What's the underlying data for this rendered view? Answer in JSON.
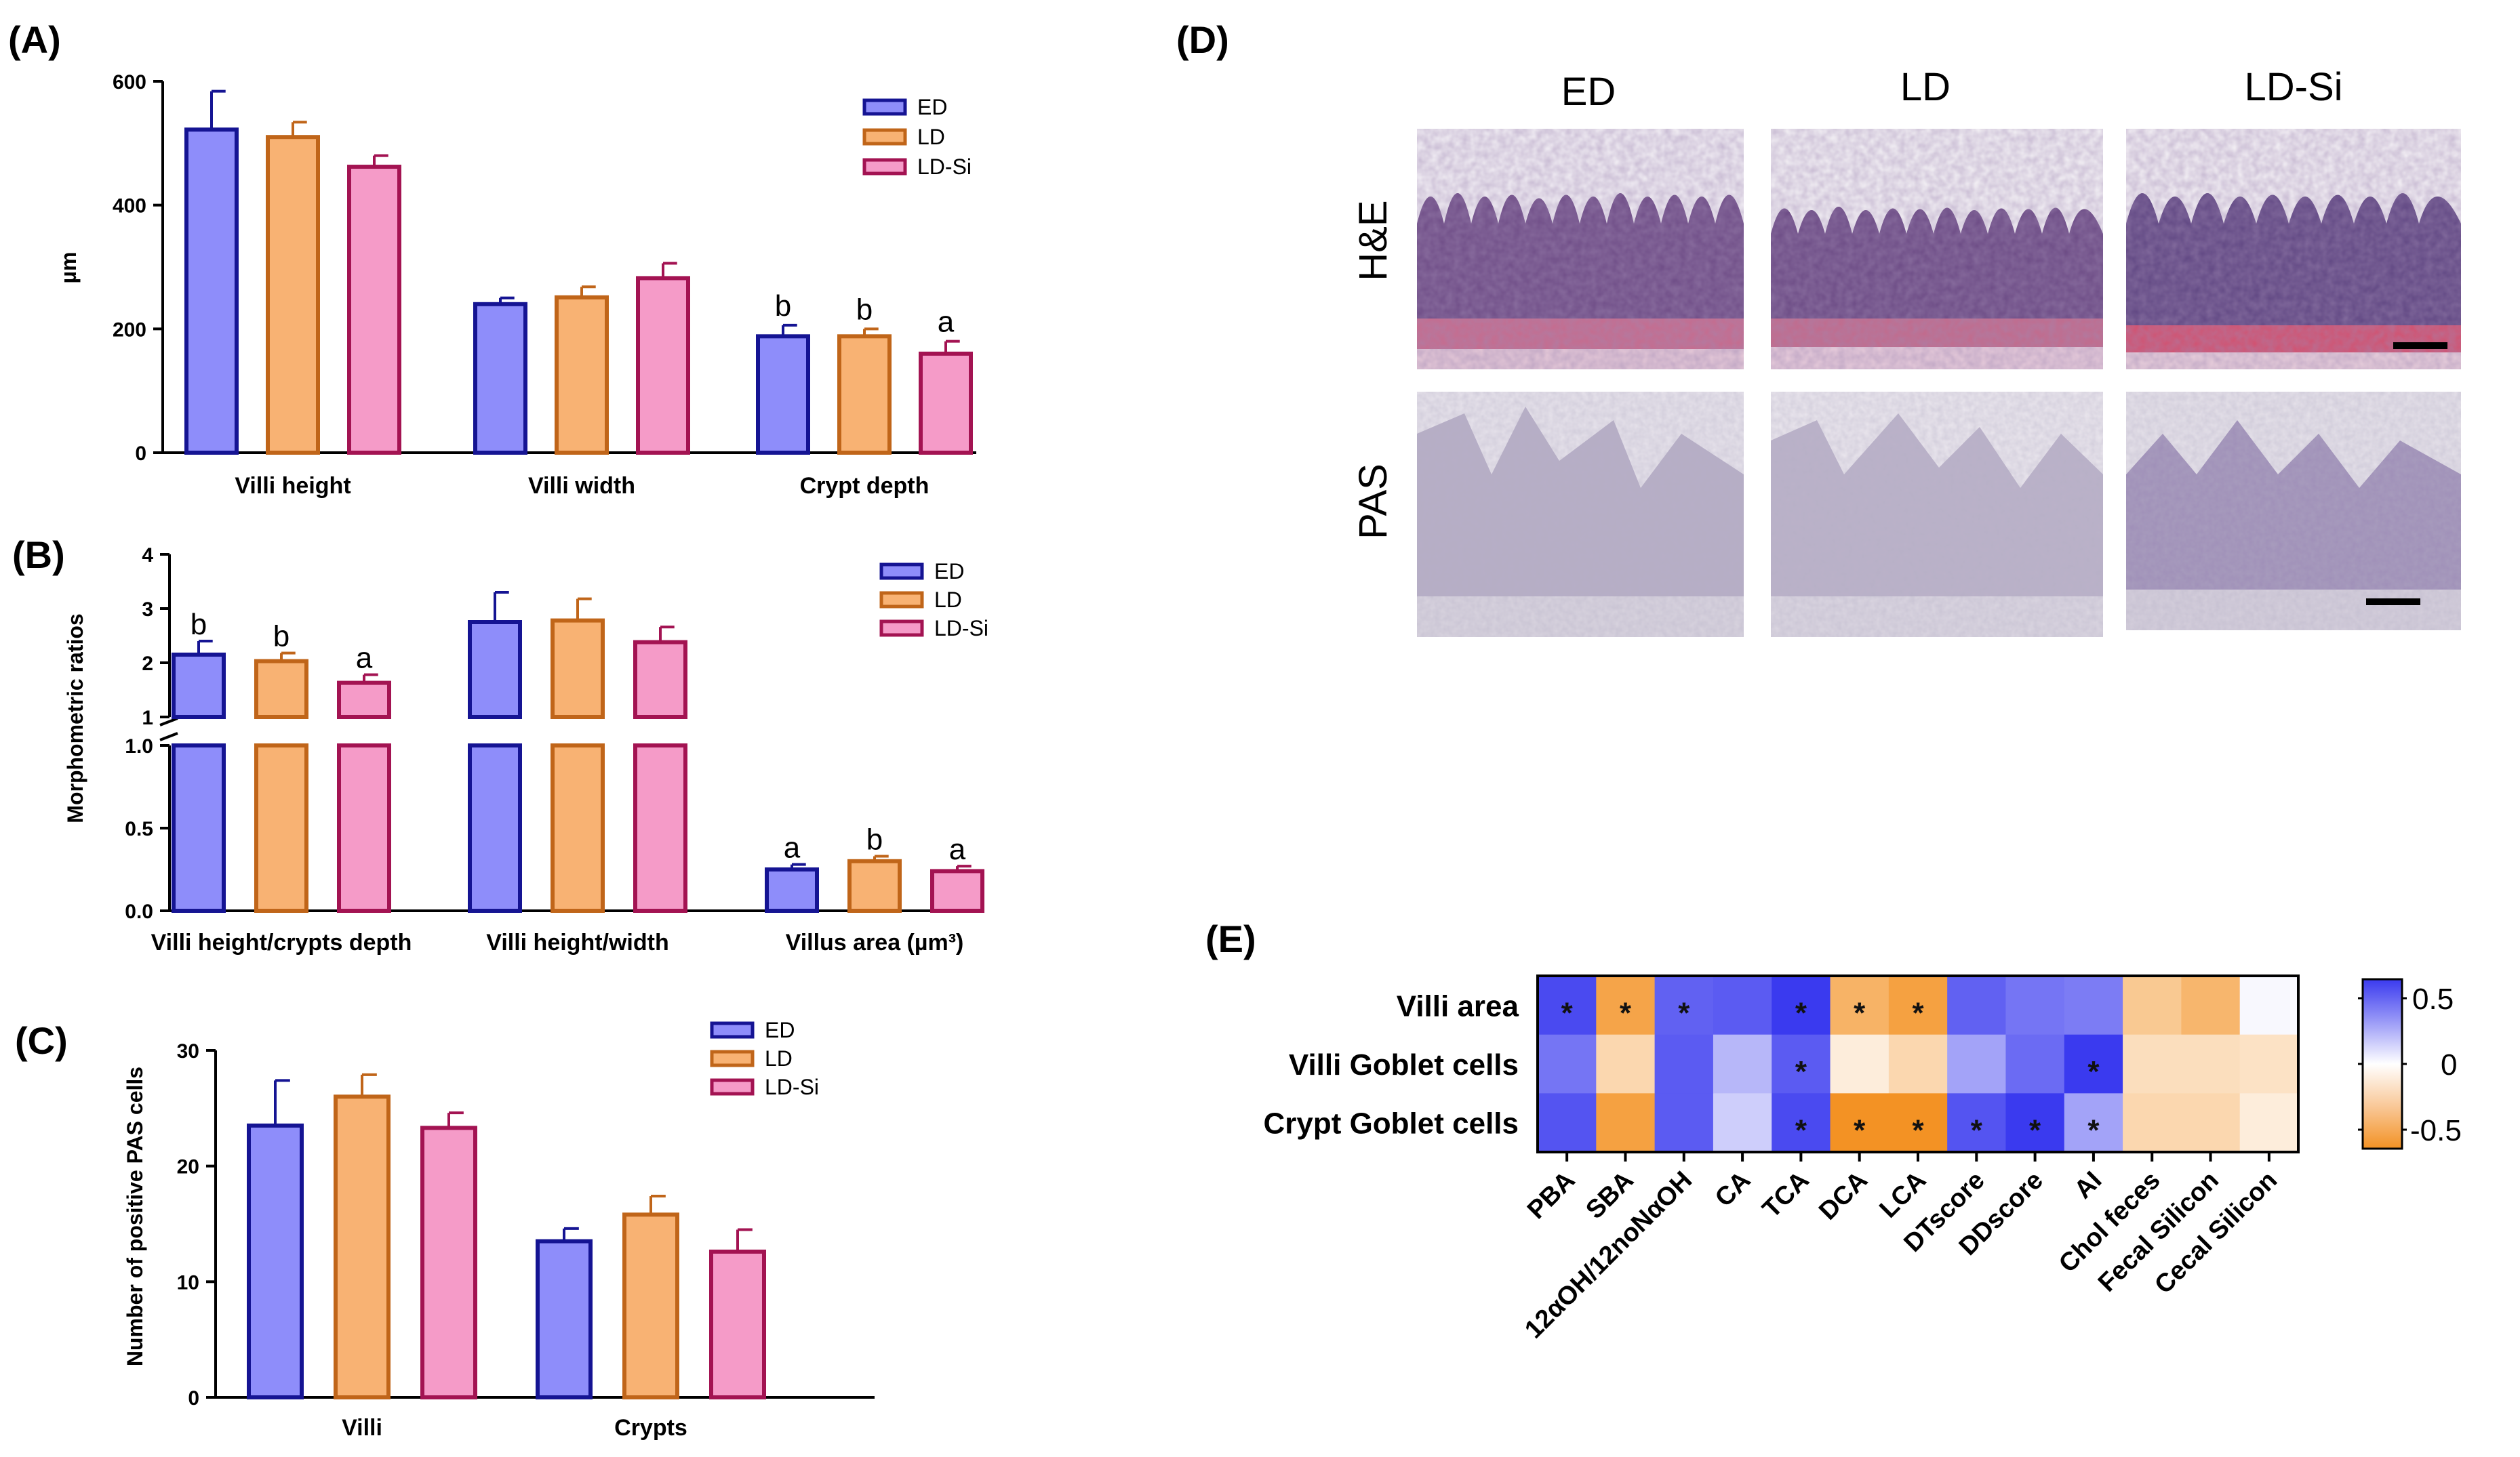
{
  "colors": {
    "ED": {
      "fill": "#8e8dfa",
      "edge": "#151493"
    },
    "LD": {
      "fill": "#f8b273",
      "edge": "#c06519"
    },
    "LD-Si": {
      "fill": "#f59bc8",
      "edge": "#a31352"
    },
    "hm_neg": "#f39c36",
    "hm_mid": "#ffffff",
    "hm_pos": "#4141f0"
  },
  "panel_labels": {
    "A": "(A)",
    "B": "(B)",
    "C": "(C)",
    "D": "(D)",
    "E": "(E)"
  },
  "chart_data": [
    {
      "id": "A",
      "type": "bar",
      "title": "",
      "xlabel": "",
      "ylabel": "µm",
      "ylim": [
        0,
        600
      ],
      "yticks": [
        "0",
        "200",
        "400",
        "600"
      ],
      "categories": [
        "Villi height",
        "Villi width",
        "Crypt depth"
      ],
      "series": [
        {
          "name": "ED",
          "values": [
            522,
            240,
            188
          ],
          "errors": [
            62,
            10,
            18
          ],
          "letters": [
            "",
            "",
            "b"
          ]
        },
        {
          "name": "LD",
          "values": [
            510,
            251,
            188
          ],
          "errors": [
            24,
            17,
            12
          ],
          "letters": [
            "",
            "",
            "b"
          ]
        },
        {
          "name": "LD-Si",
          "values": [
            462,
            282,
            160
          ],
          "errors": [
            18,
            24,
            20
          ],
          "letters": [
            "",
            "",
            "a"
          ]
        }
      ],
      "legend": [
        "ED",
        "LD",
        "LD-Si"
      ],
      "legend_position": "top-right"
    },
    {
      "id": "B",
      "type": "bar",
      "title": "",
      "xlabel": "",
      "ylabel": "Morphometric ratios",
      "axis_break": {
        "lower": [
          0.0,
          1.0
        ],
        "upper": [
          1,
          4
        ]
      },
      "yticks_lower": [
        "0.0",
        "0.5",
        "1.0"
      ],
      "yticks_upper": [
        "1",
        "2",
        "3",
        "4"
      ],
      "categories": [
        "Villi height/crypts depth",
        "Villi height/width",
        "Villus area (µm³)"
      ],
      "series": [
        {
          "name": "ED",
          "values": [
            2.15,
            2.75,
            0.25
          ],
          "errors": [
            0.25,
            0.55,
            0.03
          ],
          "letters": [
            "b",
            "",
            "a"
          ]
        },
        {
          "name": "LD",
          "values": [
            2.03,
            2.78,
            0.3
          ],
          "errors": [
            0.15,
            0.4,
            0.03
          ],
          "letters": [
            "b",
            "",
            "b"
          ]
        },
        {
          "name": "LD-Si",
          "values": [
            1.63,
            2.38,
            0.24
          ],
          "errors": [
            0.15,
            0.28,
            0.03
          ],
          "letters": [
            "a",
            "",
            "a"
          ]
        }
      ],
      "legend": [
        "ED",
        "LD",
        "LD-Si"
      ],
      "legend_position": "top-right"
    },
    {
      "id": "C",
      "type": "bar",
      "title": "",
      "xlabel": "",
      "ylabel": "Number of positive PAS cells",
      "ylim": [
        0,
        30
      ],
      "yticks": [
        "0",
        "10",
        "20",
        "30"
      ],
      "categories": [
        "Villi",
        "Crypts"
      ],
      "series": [
        {
          "name": "ED",
          "values": [
            23.5,
            13.5
          ],
          "errors": [
            3.9,
            1.1
          ]
        },
        {
          "name": "LD",
          "values": [
            26.0,
            15.8
          ],
          "errors": [
            1.9,
            1.6
          ]
        },
        {
          "name": "LD-Si",
          "values": [
            23.3,
            12.6
          ],
          "errors": [
            1.3,
            1.9
          ]
        }
      ],
      "legend": [
        "ED",
        "LD",
        "LD-Si"
      ],
      "legend_position": "top-right"
    },
    {
      "id": "E",
      "type": "heatmap",
      "title": "",
      "rows": [
        "Villi area",
        "Villi Goblet cells",
        "Crypt Goblet cells"
      ],
      "columns": [
        "PBA",
        "SBA",
        "12αOH/12noNαOH",
        "CA",
        "TCA",
        "DCA",
        "LCA",
        "DTscore",
        "DDscore",
        "AI",
        "Chol feces",
        "Fecal Silicon",
        "Cecal Silicon"
      ],
      "values": [
        [
          0.55,
          -0.5,
          0.48,
          0.5,
          0.62,
          -0.42,
          -0.52,
          0.48,
          0.42,
          0.4,
          -0.3,
          -0.4,
          0.02
        ],
        [
          0.42,
          -0.22,
          0.5,
          0.22,
          0.5,
          -0.1,
          -0.22,
          0.28,
          0.45,
          0.7,
          -0.18,
          -0.18,
          -0.16
        ],
        [
          0.52,
          -0.52,
          0.5,
          0.15,
          0.55,
          -0.6,
          -0.62,
          0.52,
          0.82,
          0.28,
          -0.22,
          -0.22,
          -0.1
        ]
      ],
      "significant": [
        [
          true,
          true,
          true,
          false,
          true,
          true,
          true,
          false,
          false,
          false,
          false,
          false,
          false
        ],
        [
          false,
          false,
          false,
          false,
          true,
          false,
          false,
          false,
          false,
          true,
          false,
          false,
          false
        ],
        [
          false,
          false,
          false,
          false,
          true,
          true,
          true,
          true,
          true,
          true,
          false,
          false,
          false
        ]
      ],
      "star": "*",
      "colorbar_range": [
        -0.6,
        0.6
      ],
      "colorbar_ticks": [
        "0.5",
        "0",
        "-0.5"
      ]
    }
  ],
  "histology": {
    "columns": [
      "ED",
      "LD",
      "LD-Si"
    ],
    "rows": [
      "H&E",
      "PAS"
    ]
  }
}
